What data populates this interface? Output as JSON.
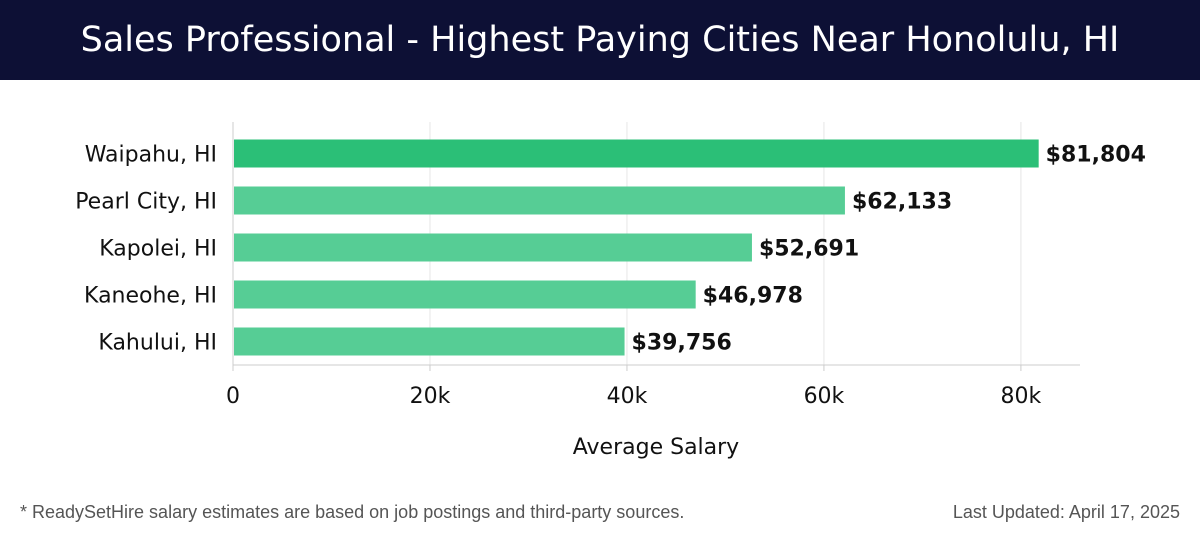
{
  "header": {
    "title": "Sales Professional - Highest Paying Cities Near Honolulu, HI"
  },
  "colors": {
    "header_bg": "#0d1035",
    "bar_top": "#2bbf77",
    "bar": "#56cd95"
  },
  "chart_data": {
    "type": "bar",
    "orientation": "horizontal",
    "categories": [
      "Waipahu, HI",
      "Pearl City, HI",
      "Kapolei, HI",
      "Kaneohe, HI",
      "Kahului, HI"
    ],
    "values": [
      81804,
      62133,
      52691,
      46978,
      39756
    ],
    "value_labels": [
      "$81,804",
      "$62,133",
      "$52,691",
      "$46,978",
      "$39,756"
    ],
    "xlabel": "Average Salary",
    "xlim": [
      0,
      86000
    ],
    "xticks": [
      0,
      20000,
      40000,
      60000,
      80000
    ],
    "xtick_labels": [
      "0",
      "20k",
      "40k",
      "60k",
      "80k"
    ],
    "grid": true
  },
  "footer": {
    "note": "* ReadySetHire salary estimates are based on job postings and third-party sources.",
    "updated": "Last Updated: April 17, 2025"
  }
}
